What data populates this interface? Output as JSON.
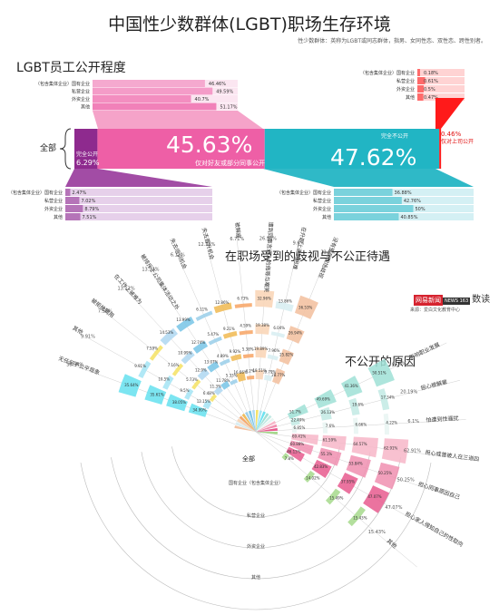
{
  "header": {
    "title": "中国性少数群体(LGBT)职场生存环境",
    "note": "性少数群体：英称为LGBT或同志群体，指男、女同性恋、双性恋、跨性别者。"
  },
  "logo": {
    "brand": "网易新闻",
    "sub": "NEWS 163",
    "product": "数读",
    "source": "来源：爱白文化教育中心"
  },
  "colors": {
    "pink": "#ee5fa6",
    "teal": "#21b5c4",
    "purple": "#8e2a8e",
    "red": "#ff1a1a"
  },
  "chart_data": [
    {
      "type": "bar",
      "title": "LGBT员工公开程度",
      "center_label": "全部",
      "groups": [
        {
          "label": "仅对好友或部分同事公开",
          "value": 45.63,
          "value_label": "45.63%",
          "color": "#ee5fa6",
          "breakdown": [
            {
              "label": "（包含集体企业）国有企业",
              "value": "46.46%"
            },
            {
              "label": "私营企业",
              "value": "49.59%"
            },
            {
              "label": "外资企业",
              "value": "40.7%"
            },
            {
              "label": "其他",
              "value": "51.17%"
            }
          ]
        },
        {
          "label": "完全不公开",
          "value": 47.62,
          "value_label": "47.62%",
          "color": "#21b5c4",
          "breakdown": [
            {
              "label": "（包含集体企业）国有企业",
              "value": "36.88%"
            },
            {
              "label": "私营企业",
              "value": "42.76%"
            },
            {
              "label": "外资企业",
              "value": "50%"
            },
            {
              "label": "其他",
              "value": "40.85%"
            }
          ]
        },
        {
          "label": "完全公开",
          "value": 6.29,
          "value_label": "6.29%",
          "color": "#8e2a8e",
          "breakdown": [
            {
              "label": "（包含集体企业）国有企业",
              "value": "2.47%"
            },
            {
              "label": "私营企业",
              "value": "7.02%"
            },
            {
              "label": "外资企业",
              "value": "8.79%"
            },
            {
              "label": "其他",
              "value": "7.51%"
            }
          ]
        },
        {
          "label": "仅对上司公开",
          "value": 0.46,
          "value_label": "0.46%",
          "color": "#ff1a1a",
          "breakdown": [
            {
              "label": "（包含集体企业）国有企业",
              "value": "0.18%"
            },
            {
              "label": "私营企业",
              "value": "0.61%"
            },
            {
              "label": "外资企业",
              "value": "0.5%"
            },
            {
              "label": "其他",
              "value": "0.47%"
            }
          ]
        }
      ]
    },
    {
      "type": "bar",
      "title": "在职场受到的歧视与不公正待遇",
      "center_label": "全部",
      "rings": [
        "国有企业（包含集体企业）",
        "私营企业",
        "外资企业",
        "其他"
      ],
      "categories": [
        {
          "label": "没有受到职场歧视",
          "value": "21.8%",
          "color": "#f3c2a2"
        },
        {
          "label": "在升职上遇到困难",
          "value": "9.6%",
          "color": "#d9eef2"
        },
        {
          "label": "遭到同事言语上的侮辱与嘲笑",
          "value": "26.94%",
          "color": "#f9d6b8"
        },
        {
          "label": "被解雇",
          "value": "6.71%",
          "color": "#f7a86b"
        },
        {
          "label": "失去晋升机会",
          "value": "12.38%",
          "color": "#f1bd5a"
        },
        {
          "label": "失去培训机会",
          "value": "6.11%",
          "color": "#9fd0ea"
        },
        {
          "label": "被排斥于公司集体活动之外",
          "value": "13.33%",
          "color": "#7ec8e8"
        },
        {
          "label": "在工作上被难为",
          "value": "13.12%",
          "color": "#b2d9f2"
        },
        {
          "label": "被拒绝聘用",
          "value": "7.55%",
          "color": "#f5e36b"
        },
        {
          "label": "其他",
          "value": "9.91%",
          "color": "#a8e6f5"
        },
        {
          "label": "无任何不公平现象",
          "value": "38.94%",
          "color": "#6ee2f0"
        }
      ],
      "ring_values": [
        [
          "28.77%",
          "10.79%",
          "18.51%",
          "4.2%",
          "16.66%",
          "5.33%",
          "11.78%",
          "11.3%",
          "6.48%",
          "12.15%",
          "34.99%"
        ],
        [
          "25.82%",
          "7.96%",
          "19.89%",
          "5.38%",
          "9.92%",
          "4.89%",
          "13.07%",
          "12.9%",
          "5.73%",
          "9.5%",
          "38.05%"
        ],
        [
          "26.94%",
          "6.04%",
          "19.38%",
          "4.59%",
          "9.21%",
          "5.47%",
          "12.74%",
          "10.99%",
          "7.16%",
          "10.5%",
          "35.61%"
        ],
        [
          "36.53%",
          "13.86%",
          "32.96%",
          "6.73%",
          "12.86%",
          "6.11%",
          "13.99%",
          "14.53%",
          "7.59%",
          "9.91%",
          "35.64%"
        ]
      ]
    },
    {
      "type": "bar",
      "title": "不公开的原因",
      "categories": [
        {
          "label": "影响职业发展",
          "value": "44.6%",
          "color": "#9fe0d6"
        },
        {
          "label": "担心被解雇",
          "value": "20.19%",
          "color": "#c2eae4"
        },
        {
          "label": "怕遭到性骚扰",
          "value": "6.1%",
          "color": "#e7f5f2"
        },
        {
          "label": "担心或曾被人在三道四",
          "value": "62.91%",
          "color": "#f7b6c8"
        },
        {
          "label": "担心同事原因自己",
          "value": "50.25%",
          "color": "#f08fb0"
        },
        {
          "label": "担心家人得知自己的性取向",
          "value": "47.07%",
          "color": "#e85a8e"
        },
        {
          "label": "其他",
          "value": "15.43%",
          "color": "#a6d98c"
        }
      ],
      "ring_values": [
        [
          "51.7%",
          "49.69%",
          "41.36%",
          "50.51%"
        ],
        [
          "22.49%",
          "26.13%",
          "19.6%",
          "17.34%"
        ],
        [
          "6.85%",
          "7.6%",
          "6.66%",
          "4.22%"
        ],
        [
          "69.41%",
          "61.59%",
          "64.57%",
          "62.91%"
        ],
        [
          "60.88%",
          "55.1%",
          "53.84%",
          "50.25%"
        ],
        [
          "46.13%",
          "42.83%",
          "37.95%",
          "47.07%"
        ],
        [
          "7.8%",
          "14.02%",
          "15.49%",
          "15.43%"
        ]
      ]
    }
  ]
}
